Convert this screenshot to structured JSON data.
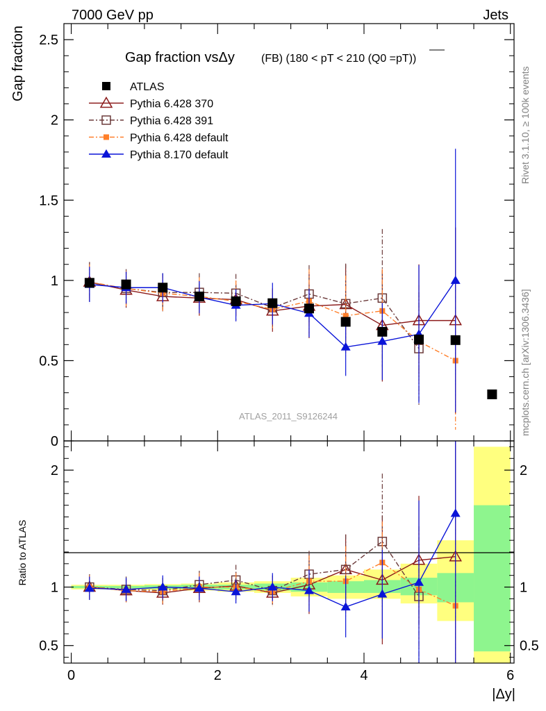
{
  "header": {
    "left": "7000 GeV pp",
    "right": "Jets"
  },
  "side_text": {
    "rivet": "Rivet 3.1.10, ≥ 100k events",
    "mcplots": "mcplots.cern.ch [arXiv:1306.3436]"
  },
  "chart_data": [
    {
      "type": "scatter",
      "title": "Gap fraction vsΔy",
      "title_suffix": "(FB) (180 < pT < 210 (Q0 =pT))",
      "watermark": "ATLAS_2011_S9126244",
      "xlabel": "|Δy|",
      "ylabel": "Gap fraction",
      "xlim": [
        -0.1,
        6.05
      ],
      "ylim": [
        0,
        2.6
      ],
      "yticks": [
        "0",
        "0.5",
        "1",
        "1.5",
        "2",
        "2.5"
      ],
      "legend_position": "top-left",
      "series": [
        {
          "name": "ATLAS",
          "color": "#000000",
          "marker": "square-filled",
          "x": [
            0.25,
            0.75,
            1.25,
            1.75,
            2.25,
            2.75,
            3.25,
            3.75,
            4.25,
            4.75,
            5.25,
            5.75
          ],
          "y": [
            0.985,
            0.975,
            0.955,
            0.9,
            0.87,
            0.858,
            0.825,
            0.742,
            0.68,
            0.632,
            0.628,
            0.29
          ]
        },
        {
          "name": "Pythia 6.428 370",
          "color": "#8b1a1a",
          "marker": "triangle-open",
          "line": "solid",
          "x": [
            0.25,
            0.75,
            1.25,
            1.75,
            2.25,
            2.75,
            3.25,
            3.75,
            4.25,
            4.75,
            5.25
          ],
          "y": [
            0.99,
            0.94,
            0.9,
            0.89,
            0.88,
            0.81,
            0.84,
            0.85,
            0.72,
            0.75,
            0.75
          ],
          "err": [
            0.12,
            0.11,
            0.09,
            0.11,
            0.1,
            0.13,
            0.2,
            0.25,
            0.35,
            0.35,
            0.58
          ]
        },
        {
          "name": "Pythia 6.428 391",
          "color": "#6b3a3a",
          "marker": "square-open",
          "line": "dashdot",
          "x": [
            0.25,
            0.75,
            1.25,
            1.75,
            2.25,
            2.75,
            3.25,
            3.75,
            4.25,
            4.75
          ],
          "y": [
            0.985,
            0.95,
            0.925,
            0.925,
            0.92,
            0.83,
            0.915,
            0.855,
            0.89,
            0.575
          ],
          "err": [
            0.13,
            0.12,
            0.12,
            0.12,
            0.12,
            0.12,
            0.18,
            0.25,
            0.43,
            0.35
          ]
        },
        {
          "name": "Pythia 6.428 default",
          "color": "#ff7f2a",
          "marker": "square-filled-small",
          "line": "dashdot",
          "x": [
            0.25,
            0.75,
            1.25,
            1.75,
            2.25,
            2.75,
            3.25,
            3.75,
            4.25,
            4.75,
            5.25
          ],
          "y": [
            0.99,
            0.95,
            0.92,
            0.9,
            0.87,
            0.82,
            0.87,
            0.78,
            0.81,
            0.62,
            0.5
          ],
          "err": [
            0.11,
            0.11,
            0.11,
            0.12,
            0.13,
            0.13,
            0.2,
            0.25,
            0.26,
            0.35,
            0.43
          ]
        },
        {
          "name": "Pythia 8.170 default",
          "color": "#0a14d8",
          "marker": "triangle-filled",
          "line": "solid",
          "x": [
            0.25,
            0.75,
            1.25,
            1.75,
            2.25,
            2.75,
            3.25,
            3.75,
            4.25,
            4.75,
            5.25
          ],
          "y": [
            0.975,
            0.955,
            0.955,
            0.895,
            0.845,
            0.855,
            0.795,
            0.585,
            0.62,
            0.665,
            1.0
          ],
          "err": [
            0.11,
            0.1,
            0.09,
            0.1,
            0.1,
            0.13,
            0.15,
            0.18,
            0.24,
            0.43,
            0.82
          ]
        }
      ]
    },
    {
      "type": "scatter",
      "ylabel": "Ratio to ATLAS",
      "xlabel": "|Δy|",
      "xlim": [
        -0.1,
        6.05
      ],
      "ylim": [
        0.35,
        2.25
      ],
      "yticks": [
        "0.5",
        "1",
        "2"
      ],
      "xticks": [
        "0",
        "2",
        "4",
        "6"
      ],
      "uncertainty_bands": {
        "x_edges": [
          0,
          0.5,
          1.0,
          1.5,
          2.0,
          2.5,
          3.0,
          3.5,
          4.0,
          4.5,
          5.0,
          5.5,
          6.0
        ],
        "green": [
          [
            0.99,
            1.01
          ],
          [
            0.99,
            1.01
          ],
          [
            0.985,
            1.015
          ],
          [
            0.985,
            1.02
          ],
          [
            0.98,
            1.02
          ],
          [
            0.97,
            1.03
          ],
          [
            0.96,
            1.04
          ],
          [
            0.95,
            1.05
          ],
          [
            0.95,
            1.06
          ],
          [
            0.93,
            1.08
          ],
          [
            0.87,
            1.12
          ],
          [
            0.45,
            1.7
          ]
        ],
        "yellow": [
          [
            0.98,
            1.02
          ],
          [
            0.98,
            1.02
          ],
          [
            0.975,
            1.025
          ],
          [
            0.97,
            1.03
          ],
          [
            0.96,
            1.04
          ],
          [
            0.95,
            1.05
          ],
          [
            0.92,
            1.08
          ],
          [
            0.9,
            1.1
          ],
          [
            0.9,
            1.15
          ],
          [
            0.86,
            1.2
          ],
          [
            0.71,
            1.4
          ],
          [
            0.35,
            2.2
          ]
        ]
      },
      "series": [
        {
          "name": "Pythia 6.428 370",
          "color": "#8b1a1a",
          "marker": "triangle-open",
          "line": "solid",
          "x": [
            0.25,
            0.75,
            1.25,
            1.75,
            2.25,
            2.75,
            3.25,
            3.75,
            4.25,
            4.75,
            5.25
          ],
          "y": [
            1.0,
            0.97,
            0.95,
            0.99,
            1.01,
            0.95,
            1.02,
            1.15,
            1.06,
            1.23,
            1.26
          ],
          "err": [
            0.1,
            0.1,
            0.1,
            0.12,
            0.12,
            0.1,
            0.25,
            0.3,
            0.55,
            0.55,
            1.0
          ]
        },
        {
          "name": "Pythia 6.428 391",
          "color": "#6b3a3a",
          "marker": "square-open",
          "line": "dashdot",
          "x": [
            0.25,
            0.75,
            1.25,
            1.75,
            2.25,
            2.75,
            3.25,
            3.75,
            4.25,
            4.75
          ],
          "y": [
            1.0,
            0.98,
            0.97,
            1.02,
            1.06,
            0.97,
            1.11,
            1.15,
            1.39,
            0.92
          ],
          "err": [
            0.11,
            0.11,
            0.11,
            0.12,
            0.13,
            0.13,
            0.2,
            0.3,
            0.58,
            0.6
          ]
        },
        {
          "name": "Pythia 6.428 default",
          "color": "#ff7f2a",
          "marker": "square-filled-small",
          "line": "dashdot",
          "x": [
            0.25,
            0.75,
            1.25,
            1.75,
            2.25,
            2.75,
            3.25,
            3.75,
            4.25,
            4.75,
            5.25
          ],
          "y": [
            1.0,
            0.97,
            0.96,
            1.0,
            1.0,
            0.96,
            1.05,
            1.05,
            1.21,
            0.98,
            0.84
          ],
          "err": [
            0.1,
            0.1,
            0.1,
            0.12,
            0.12,
            0.12,
            0.22,
            0.3,
            0.35,
            0.5,
            0.7
          ]
        },
        {
          "name": "Pythia 8.170 default",
          "color": "#0a14d8",
          "marker": "triangle-filled",
          "line": "solid",
          "x": [
            0.25,
            0.75,
            1.25,
            1.75,
            2.25,
            2.75,
            3.25,
            3.75,
            4.25,
            4.75,
            5.25
          ],
          "y": [
            0.99,
            0.98,
            1.0,
            0.99,
            0.96,
            1.0,
            0.97,
            0.83,
            0.94,
            1.04,
            1.63
          ],
          "err": [
            0.1,
            0.1,
            0.1,
            0.1,
            0.1,
            0.12,
            0.18,
            0.26,
            0.38,
            0.7,
            1.3
          ]
        }
      ]
    }
  ]
}
